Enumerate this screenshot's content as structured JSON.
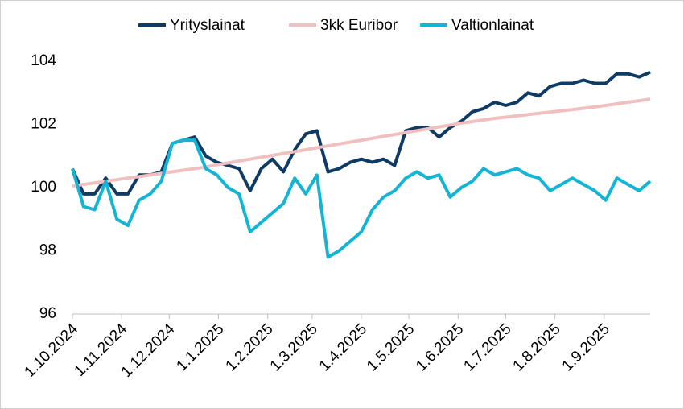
{
  "chart_data": {
    "type": "line",
    "x": [
      "1.10.2024",
      "8.10.2024",
      "15.10.2024",
      "22.10.2024",
      "29.10.2024",
      "5.11.2024",
      "12.11.2024",
      "19.11.2024",
      "26.11.2024",
      "3.12.2024",
      "10.12.2024",
      "17.12.2024",
      "24.12.2024",
      "31.12.2024",
      "7.1.2025",
      "14.1.2025",
      "21.1.2025",
      "28.1.2025",
      "4.2.2025",
      "11.2.2025",
      "18.2.2025",
      "25.2.2025",
      "4.3.2025",
      "11.3.2025",
      "18.3.2025",
      "25.3.2025",
      "1.4.2025",
      "8.4.2025",
      "15.4.2025",
      "22.4.2025",
      "29.4.2025",
      "6.5.2025",
      "13.5.2025",
      "20.5.2025",
      "27.5.2025",
      "3.6.2025",
      "10.6.2025",
      "17.6.2025",
      "24.6.2025",
      "1.7.2025",
      "8.7.2025",
      "15.7.2025",
      "22.7.2025",
      "29.7.2025",
      "5.8.2025",
      "12.8.2025",
      "19.8.2025",
      "26.8.2025",
      "2.9.2025",
      "9.9.2025",
      "16.9.2025",
      "23.9.2025",
      "30.9.2025"
    ],
    "series": [
      {
        "name": "Yrityslainat",
        "color": "#0e3a66",
        "values": [
          100.6,
          99.8,
          99.8,
          100.3,
          99.8,
          99.8,
          100.4,
          100.4,
          100.5,
          101.4,
          101.5,
          101.6,
          101.0,
          100.8,
          100.7,
          100.6,
          99.9,
          100.6,
          100.9,
          100.5,
          101.2,
          101.7,
          101.8,
          100.5,
          100.6,
          100.8,
          100.9,
          100.8,
          100.9,
          100.7,
          101.8,
          101.9,
          101.9,
          101.6,
          101.9,
          102.1,
          102.4,
          102.5,
          102.7,
          102.6,
          102.7,
          103.0,
          102.9,
          103.2,
          103.3,
          103.3,
          103.4,
          103.3,
          103.3,
          103.6,
          103.6,
          103.5,
          103.65
        ]
      },
      {
        "name": "3kk Euribor",
        "color": "#f0c0c0",
        "values": [
          100.05,
          100.1,
          100.15,
          100.2,
          100.25,
          100.3,
          100.35,
          100.4,
          100.45,
          100.5,
          100.55,
          100.6,
          100.65,
          100.72,
          100.78,
          100.84,
          100.9,
          100.96,
          101.02,
          101.08,
          101.14,
          101.2,
          101.26,
          101.32,
          101.38,
          101.44,
          101.5,
          101.56,
          101.62,
          101.68,
          101.74,
          101.8,
          101.86,
          101.92,
          101.98,
          102.04,
          102.09,
          102.14,
          102.19,
          102.23,
          102.27,
          102.31,
          102.35,
          102.39,
          102.43,
          102.47,
          102.51,
          102.55,
          102.6,
          102.65,
          102.7,
          102.75,
          102.8
        ]
      },
      {
        "name": "Valtionlainat",
        "color": "#14b4d4",
        "values": [
          100.6,
          99.4,
          99.3,
          100.2,
          99.0,
          98.8,
          99.6,
          99.8,
          100.2,
          101.4,
          101.5,
          101.5,
          100.6,
          100.4,
          100.0,
          99.8,
          98.6,
          98.9,
          99.2,
          99.5,
          100.3,
          99.8,
          100.4,
          97.8,
          98.0,
          98.3,
          98.6,
          99.3,
          99.7,
          99.9,
          100.3,
          100.5,
          100.3,
          100.4,
          99.7,
          100.0,
          100.2,
          100.6,
          100.4,
          100.5,
          100.6,
          100.4,
          100.3,
          99.9,
          100.1,
          100.3,
          100.1,
          99.9,
          99.6,
          100.3,
          100.1,
          99.9,
          100.2
        ]
      }
    ],
    "xlim": [
      "1.10.2024",
      "30.9.2025"
    ],
    "xticks": [
      "1.10.2024",
      "1.11.2024",
      "1.12.2024",
      "1.1.2025",
      "1.2.2025",
      "1.3.2025",
      "1.4.2025",
      "1.5.2025",
      "1.6.2025",
      "1.7.2025",
      "1.8.2025",
      "1.9.2025"
    ],
    "ylim": [
      96,
      104
    ],
    "yticks": [
      96,
      98,
      100,
      102,
      104
    ],
    "grid": false,
    "legend": "top"
  }
}
